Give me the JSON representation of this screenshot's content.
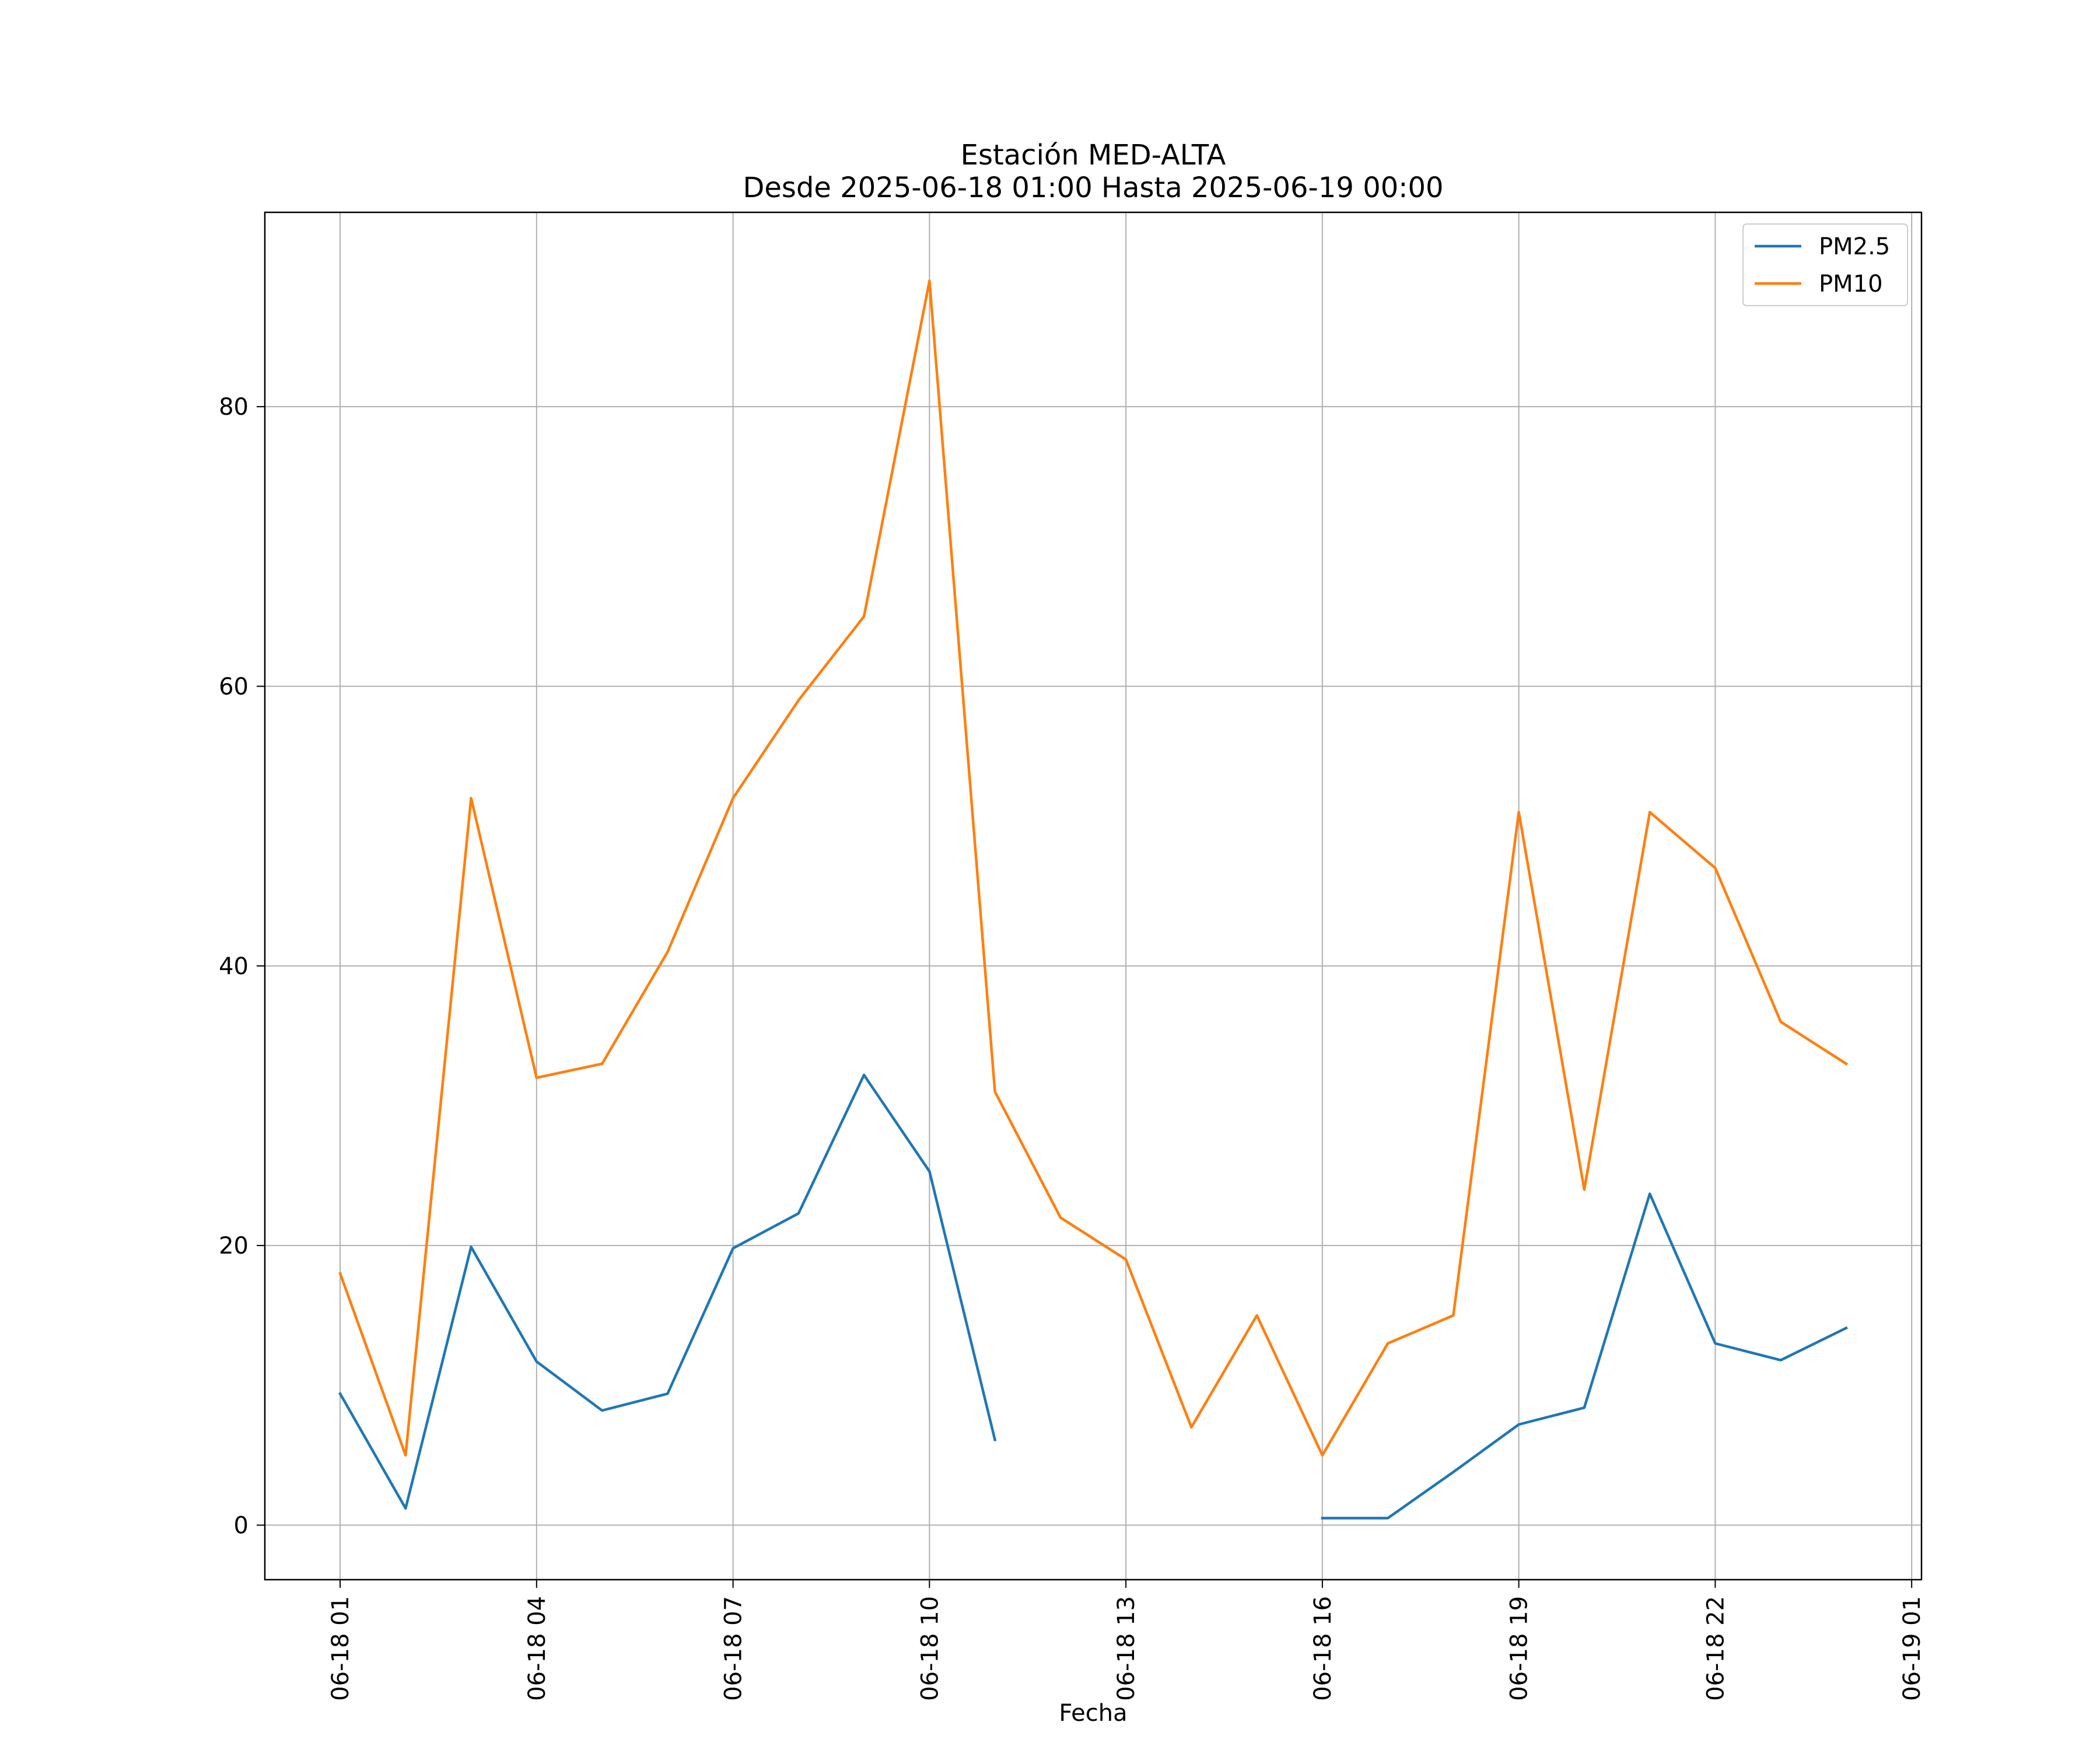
{
  "chart_data": {
    "type": "line",
    "title": "Estación MED-ALTA",
    "subtitle": "Desde 2025-06-18 01:00 Hasta 2025-06-19 00:00",
    "xlabel": "Fecha",
    "ylabel": "",
    "x": [
      "2025-06-18 01:00",
      "2025-06-18 02:00",
      "2025-06-18 03:00",
      "2025-06-18 04:00",
      "2025-06-18 05:00",
      "2025-06-18 06:00",
      "2025-06-18 07:00",
      "2025-06-18 08:00",
      "2025-06-18 09:00",
      "2025-06-18 10:00",
      "2025-06-18 11:00",
      "2025-06-18 12:00",
      "2025-06-18 13:00",
      "2025-06-18 14:00",
      "2025-06-18 15:00",
      "2025-06-18 16:00",
      "2025-06-18 17:00",
      "2025-06-18 18:00",
      "2025-06-18 19:00",
      "2025-06-18 20:00",
      "2025-06-18 21:00",
      "2025-06-18 22:00",
      "2025-06-18 23:00",
      "2025-06-19 00:00"
    ],
    "series": [
      {
        "name": "PM2.5",
        "color": "#1f77b4",
        "values": [
          9.4,
          1.2,
          19.9,
          11.7,
          8.2,
          9.4,
          19.8,
          22.3,
          32.2,
          25.3,
          6.1,
          null,
          null,
          null,
          null,
          0.5,
          0.5,
          3.8,
          7.2,
          8.4,
          23.7,
          13.0,
          11.8,
          14.1
        ]
      },
      {
        "name": "PM10",
        "color": "#ff7f0e",
        "values": [
          18,
          5,
          52,
          32,
          33,
          41,
          52,
          59,
          65,
          89,
          31,
          22,
          19,
          7,
          15,
          5,
          13,
          15,
          51,
          24,
          51,
          47,
          36,
          33
        ]
      }
    ],
    "xticks": [
      {
        "x": "2025-06-18 01:00",
        "label": "06-18 01"
      },
      {
        "x": "2025-06-18 04:00",
        "label": "06-18 04"
      },
      {
        "x": "2025-06-18 07:00",
        "label": "06-18 07"
      },
      {
        "x": "2025-06-18 10:00",
        "label": "06-18 10"
      },
      {
        "x": "2025-06-18 13:00",
        "label": "06-18 13"
      },
      {
        "x": "2025-06-18 16:00",
        "label": "06-18 16"
      },
      {
        "x": "2025-06-18 19:00",
        "label": "06-18 19"
      },
      {
        "x": "2025-06-18 22:00",
        "label": "06-18 22"
      },
      {
        "x": "2025-06-19 01:00",
        "label": "06-19 01"
      }
    ],
    "yticks": [
      0,
      20,
      40,
      60,
      80
    ],
    "xlim": [
      "2025-06-17 23:51",
      "2025-06-19 01:09"
    ],
    "ylim": [
      -3.9,
      93.9
    ],
    "grid": true,
    "legend_position": "top-right"
  }
}
